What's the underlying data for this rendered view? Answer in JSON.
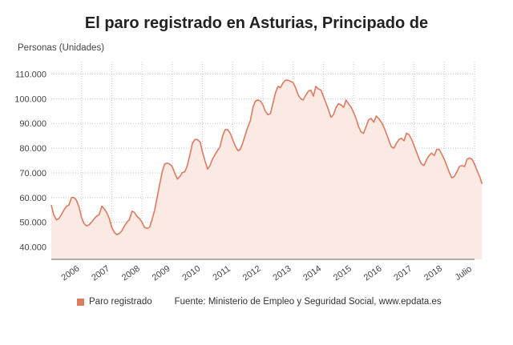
{
  "chart_data": {
    "type": "area",
    "title": "El paro registrado en Asturias, Principado de",
    "ylabel": "Personas (Unidades)",
    "xlabel": "",
    "ylim": [
      35000,
      115000
    ],
    "yticks": [
      40000,
      50000,
      60000,
      70000,
      80000,
      90000,
      100000,
      110000
    ],
    "ytick_labels": [
      "40.000",
      "50.000",
      "60.000",
      "70.000",
      "80.000",
      "90.000",
      "100.000",
      "110.000"
    ],
    "xticks": [
      {
        "x": 2006,
        "label": "2006"
      },
      {
        "x": 2007,
        "label": "2007"
      },
      {
        "x": 2008,
        "label": "2008"
      },
      {
        "x": 2009,
        "label": "2009"
      },
      {
        "x": 2010,
        "label": "2010"
      },
      {
        "x": 2011,
        "label": "2011"
      },
      {
        "x": 2012,
        "label": "2012"
      },
      {
        "x": 2013,
        "label": "2013"
      },
      {
        "x": 2014,
        "label": "2014"
      },
      {
        "x": 2015,
        "label": "2015"
      },
      {
        "x": 2016,
        "label": "2016"
      },
      {
        "x": 2017,
        "label": "2017"
      },
      {
        "x": 2018,
        "label": "2018"
      },
      {
        "x": 2019,
        "label": "Julio"
      }
    ],
    "xlim": [
      2005,
      2019
    ],
    "grid": true,
    "legend_position": "bottom-left",
    "series": [
      {
        "name": "Paro registrado",
        "color": "#e07a5f",
        "fill": "#fbe9e4",
        "points": [
          [
            2005.0,
            57000
          ],
          [
            2005.08,
            53000
          ],
          [
            2005.17,
            51000
          ],
          [
            2005.25,
            51500
          ],
          [
            2005.33,
            53000
          ],
          [
            2005.42,
            55000
          ],
          [
            2005.5,
            56500
          ],
          [
            2005.58,
            57000
          ],
          [
            2005.67,
            60000
          ],
          [
            2005.75,
            60000
          ],
          [
            2005.83,
            59000
          ],
          [
            2005.92,
            56000
          ],
          [
            2006.0,
            52000
          ],
          [
            2006.08,
            49500
          ],
          [
            2006.17,
            48500
          ],
          [
            2006.25,
            49000
          ],
          [
            2006.33,
            50000
          ],
          [
            2006.42,
            51500
          ],
          [
            2006.5,
            52500
          ],
          [
            2006.58,
            53000
          ],
          [
            2006.67,
            56500
          ],
          [
            2006.75,
            55500
          ],
          [
            2006.83,
            54000
          ],
          [
            2006.92,
            51500
          ],
          [
            2007.0,
            48000
          ],
          [
            2007.08,
            46000
          ],
          [
            2007.17,
            45000
          ],
          [
            2007.25,
            45500
          ],
          [
            2007.33,
            46500
          ],
          [
            2007.42,
            48500
          ],
          [
            2007.5,
            50000
          ],
          [
            2007.58,
            51000
          ],
          [
            2007.67,
            54500
          ],
          [
            2007.75,
            54000
          ],
          [
            2007.83,
            52500
          ],
          [
            2007.92,
            51500
          ],
          [
            2008.0,
            50000
          ],
          [
            2008.08,
            48000
          ],
          [
            2008.17,
            47500
          ],
          [
            2008.25,
            48000
          ],
          [
            2008.33,
            51000
          ],
          [
            2008.42,
            55000
          ],
          [
            2008.5,
            60000
          ],
          [
            2008.58,
            65000
          ],
          [
            2008.67,
            70500
          ],
          [
            2008.75,
            73500
          ],
          [
            2008.83,
            74000
          ],
          [
            2008.92,
            73500
          ],
          [
            2009.0,
            72500
          ],
          [
            2009.08,
            70000
          ],
          [
            2009.17,
            67500
          ],
          [
            2009.25,
            68500
          ],
          [
            2009.33,
            70000
          ],
          [
            2009.42,
            70500
          ],
          [
            2009.5,
            73000
          ],
          [
            2009.58,
            77000
          ],
          [
            2009.67,
            82000
          ],
          [
            2009.75,
            83500
          ],
          [
            2009.83,
            83500
          ],
          [
            2009.92,
            82500
          ],
          [
            2010.0,
            78500
          ],
          [
            2010.08,
            75000
          ],
          [
            2010.17,
            71500
          ],
          [
            2010.25,
            73000
          ],
          [
            2010.33,
            75500
          ],
          [
            2010.42,
            77500
          ],
          [
            2010.5,
            79000
          ],
          [
            2010.58,
            80500
          ],
          [
            2010.67,
            85000
          ],
          [
            2010.75,
            87500
          ],
          [
            2010.83,
            87500
          ],
          [
            2010.92,
            86000
          ],
          [
            2011.0,
            83500
          ],
          [
            2011.08,
            81000
          ],
          [
            2011.17,
            79000
          ],
          [
            2011.25,
            79500
          ],
          [
            2011.33,
            82000
          ],
          [
            2011.42,
            85500
          ],
          [
            2011.5,
            88500
          ],
          [
            2011.58,
            91000
          ],
          [
            2011.67,
            96500
          ],
          [
            2011.75,
            99000
          ],
          [
            2011.83,
            99500
          ],
          [
            2011.92,
            99000
          ],
          [
            2012.0,
            97500
          ],
          [
            2012.08,
            95000
          ],
          [
            2012.17,
            93500
          ],
          [
            2012.25,
            94000
          ],
          [
            2012.33,
            98000
          ],
          [
            2012.42,
            102500
          ],
          [
            2012.5,
            105000
          ],
          [
            2012.58,
            104500
          ],
          [
            2012.67,
            106500
          ],
          [
            2012.75,
            107500
          ],
          [
            2012.83,
            107500
          ],
          [
            2012.92,
            107000
          ],
          [
            2013.0,
            106500
          ],
          [
            2013.08,
            104500
          ],
          [
            2013.17,
            101500
          ],
          [
            2013.25,
            100000
          ],
          [
            2013.33,
            99500
          ],
          [
            2013.42,
            101500
          ],
          [
            2013.5,
            103000
          ],
          [
            2013.58,
            103500
          ],
          [
            2013.67,
            101000
          ],
          [
            2013.75,
            105000
          ],
          [
            2013.83,
            104000
          ],
          [
            2013.92,
            103500
          ],
          [
            2014.0,
            101000
          ],
          [
            2014.08,
            98500
          ],
          [
            2014.17,
            95500
          ],
          [
            2014.25,
            92500
          ],
          [
            2014.33,
            93500
          ],
          [
            2014.42,
            96500
          ],
          [
            2014.5,
            98000
          ],
          [
            2014.58,
            97500
          ],
          [
            2014.67,
            96500
          ],
          [
            2014.75,
            99500
          ],
          [
            2014.83,
            98000
          ],
          [
            2014.92,
            96500
          ],
          [
            2015.0,
            94500
          ],
          [
            2015.08,
            92000
          ],
          [
            2015.17,
            88500
          ],
          [
            2015.25,
            86500
          ],
          [
            2015.33,
            86000
          ],
          [
            2015.42,
            89000
          ],
          [
            2015.5,
            91500
          ],
          [
            2015.58,
            92000
          ],
          [
            2015.67,
            90500
          ],
          [
            2015.75,
            93000
          ],
          [
            2015.83,
            92000
          ],
          [
            2015.92,
            90500
          ],
          [
            2016.0,
            88500
          ],
          [
            2016.08,
            86000
          ],
          [
            2016.17,
            83000
          ],
          [
            2016.25,
            80500
          ],
          [
            2016.33,
            80000
          ],
          [
            2016.42,
            82000
          ],
          [
            2016.5,
            83500
          ],
          [
            2016.58,
            84000
          ],
          [
            2016.67,
            83000
          ],
          [
            2016.75,
            86000
          ],
          [
            2016.83,
            85500
          ],
          [
            2016.92,
            83500
          ],
          [
            2017.0,
            81000
          ],
          [
            2017.08,
            78500
          ],
          [
            2017.17,
            75500
          ],
          [
            2017.25,
            73500
          ],
          [
            2017.33,
            73000
          ],
          [
            2017.42,
            75500
          ],
          [
            2017.5,
            77000
          ],
          [
            2017.58,
            78000
          ],
          [
            2017.67,
            77000
          ],
          [
            2017.75,
            79500
          ],
          [
            2017.83,
            79500
          ],
          [
            2017.92,
            77500
          ],
          [
            2018.0,
            75500
          ],
          [
            2018.08,
            73000
          ],
          [
            2018.17,
            70000
          ],
          [
            2018.25,
            68000
          ],
          [
            2018.33,
            68500
          ],
          [
            2018.42,
            70500
          ],
          [
            2018.5,
            72500
          ],
          [
            2018.58,
            73000
          ],
          [
            2018.67,
            72500
          ],
          [
            2018.75,
            75500
          ],
          [
            2018.83,
            76000
          ],
          [
            2018.92,
            75500
          ],
          [
            2019.0,
            73500
          ],
          [
            2019.08,
            71000
          ],
          [
            2019.17,
            68500
          ],
          [
            2019.25,
            65500
          ]
        ]
      }
    ]
  },
  "legend": {
    "series_label": "Paro registrado",
    "source": "Fuente: Ministerio de Empleo y Seguridad Social, www.epdata.es"
  }
}
